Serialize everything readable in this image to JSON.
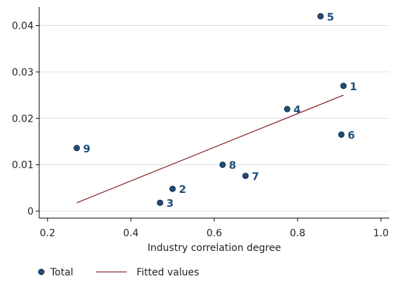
{
  "chart_data": {
    "type": "scatter",
    "title": "",
    "xlabel": "Industry correlation degree",
    "ylabel": "",
    "xlim": [
      0.18,
      1.02
    ],
    "ylim": [
      -0.0015,
      0.044
    ],
    "x_ticks": [
      0.2,
      0.4,
      0.6,
      0.8,
      1.0
    ],
    "x_tick_labels": [
      "0.2",
      "0.4",
      "0.6",
      "0.8",
      "1.0"
    ],
    "y_ticks": [
      0,
      0.01,
      0.02,
      0.03,
      0.04
    ],
    "y_tick_labels": [
      "0",
      "0.01",
      "0.02",
      "0.03",
      "0.04"
    ],
    "grid": "horizontal",
    "legend_placement": "bottom",
    "colors": {
      "points": "#1f4e79",
      "labels": "#1f4e79",
      "fit_line": "#8b2c2c",
      "grid": "#e0e0e0",
      "axis": "#000000"
    },
    "series": [
      {
        "name": "Total",
        "type": "scatter",
        "points": [
          {
            "x": 0.91,
            "y": 0.027,
            "label": "1"
          },
          {
            "x": 0.5,
            "y": 0.0048,
            "label": "2"
          },
          {
            "x": 0.47,
            "y": 0.0018,
            "label": "3"
          },
          {
            "x": 0.775,
            "y": 0.022,
            "label": "4"
          },
          {
            "x": 0.855,
            "y": 0.042,
            "label": "5"
          },
          {
            "x": 0.905,
            "y": 0.0165,
            "label": "6"
          },
          {
            "x": 0.675,
            "y": 0.0076,
            "label": "7"
          },
          {
            "x": 0.62,
            "y": 0.01,
            "label": "8"
          },
          {
            "x": 0.27,
            "y": 0.0136,
            "label": "9"
          }
        ]
      },
      {
        "name": "Fitted values",
        "type": "line",
        "points": [
          {
            "x": 0.27,
            "y": 0.0018
          },
          {
            "x": 0.91,
            "y": 0.025
          }
        ]
      }
    ]
  }
}
